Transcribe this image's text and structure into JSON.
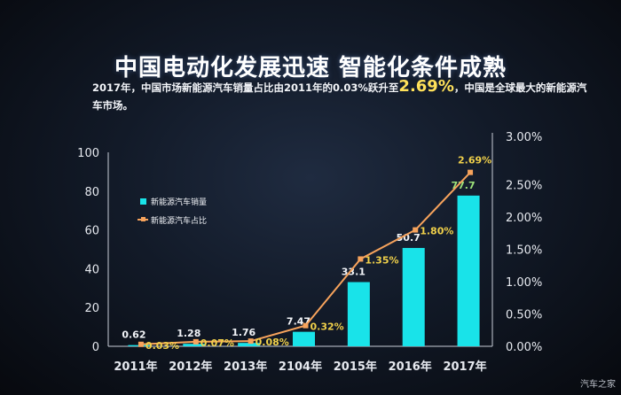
{
  "slide": {
    "title": "中国电动化发展迅速 智能化条件成熟",
    "subtitle_before": "2017年，中国市场新能源汽车销量占比由2011年的0.03%跃升至",
    "subtitle_highlight": "2.69%",
    "subtitle_after": "，中国是全球最大的新能源汽车市场。",
    "watermark": "汽车之家"
  },
  "colors": {
    "bar": "#19e3e9",
    "line": "#f7a35c",
    "share_label": "#f0d04a",
    "axis_text": "#e6e9ef"
  },
  "chart_data": {
    "type": "bar",
    "categories": [
      "2011年",
      "2012年",
      "2013年",
      "2104年",
      "2015年",
      "2016年",
      "2017年"
    ],
    "ylim": [
      0,
      100
    ],
    "yticks": [
      "0",
      "20",
      "40",
      "60",
      "80",
      "100"
    ],
    "y2lim": [
      0,
      3
    ],
    "y2ticks": [
      "0.00%",
      "0.50%",
      "1.00%",
      "1.50%",
      "2.00%",
      "2.50%",
      "3.00%"
    ],
    "series": [
      {
        "name": "新能源汽车销量",
        "type": "bar",
        "axis": "left",
        "values": [
          0.62,
          1.28,
          1.76,
          7.47,
          33.1,
          50.7,
          77.7
        ],
        "labels": [
          "0.62",
          "1.28",
          "1.76",
          "7.47",
          "33.1",
          "50.7",
          "77.7"
        ]
      },
      {
        "name": "新能源汽车占比",
        "type": "line",
        "axis": "right",
        "values": [
          0.03,
          0.07,
          0.08,
          0.32,
          1.35,
          1.8,
          2.69
        ],
        "labels": [
          "0.03%",
          "0.07%",
          "0.08%",
          "0.32%",
          "1.35%",
          "1.80%",
          "2.69%"
        ]
      }
    ],
    "legend_position": "top-left inside plot",
    "grid": false
  }
}
